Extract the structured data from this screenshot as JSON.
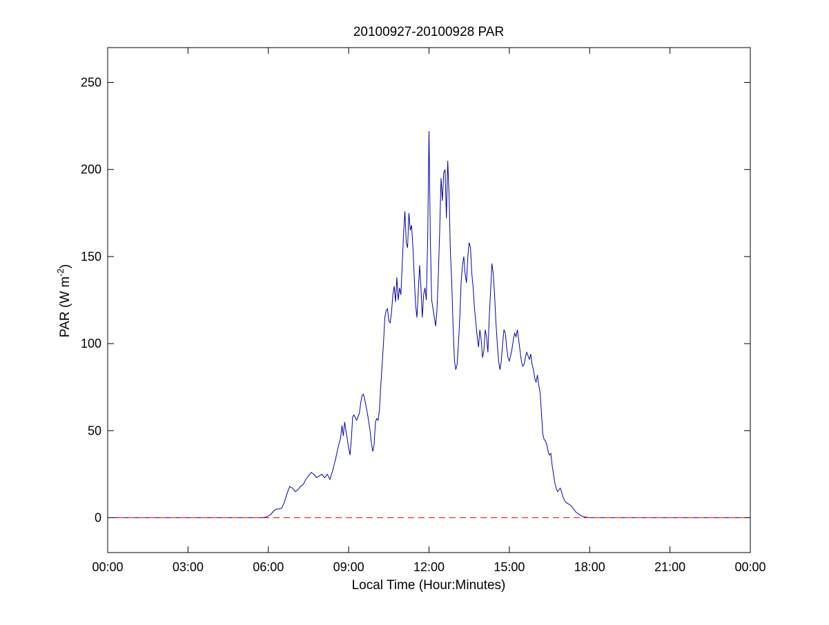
{
  "chart_data": {
    "type": "line",
    "title": "20100927-20100928 PAR",
    "xlabel": "Local Time (Hour:Minutes)",
    "ylabel_main": "PAR (W m",
    "ylabel_sup": "-2",
    "ylabel_close": ")",
    "x_unit": "hours",
    "xlim": [
      0,
      24
    ],
    "ylim": [
      -20,
      270
    ],
    "x_ticks": [
      0,
      3,
      6,
      9,
      12,
      15,
      18,
      21,
      24
    ],
    "x_tick_labels": [
      "00:00",
      "03:00",
      "06:00",
      "09:00",
      "12:00",
      "15:00",
      "18:00",
      "21:00",
      "00:00"
    ],
    "y_ticks": [
      0,
      50,
      100,
      150,
      200,
      250
    ],
    "y_tick_labels": [
      "0",
      "50",
      "100",
      "150",
      "200",
      "250"
    ],
    "grid": false,
    "series": [
      {
        "color": "#0000aa",
        "style": "solid",
        "points": [
          [
            0.0,
            0
          ],
          [
            5.75,
            0
          ],
          [
            5.9,
            0.3
          ],
          [
            6.0,
            1
          ],
          [
            6.1,
            2
          ],
          [
            6.2,
            4
          ],
          [
            6.3,
            5
          ],
          [
            6.4,
            5
          ],
          [
            6.5,
            5.5
          ],
          [
            6.6,
            9
          ],
          [
            6.7,
            14
          ],
          [
            6.8,
            18
          ],
          [
            6.9,
            17
          ],
          [
            7.0,
            15
          ],
          [
            7.1,
            16
          ],
          [
            7.2,
            18
          ],
          [
            7.3,
            19
          ],
          [
            7.4,
            22
          ],
          [
            7.5,
            24
          ],
          [
            7.6,
            26
          ],
          [
            7.7,
            25
          ],
          [
            7.8,
            23
          ],
          [
            7.9,
            24
          ],
          [
            8.0,
            25
          ],
          [
            8.1,
            23
          ],
          [
            8.2,
            25
          ],
          [
            8.3,
            22
          ],
          [
            8.4,
            27
          ],
          [
            8.5,
            33
          ],
          [
            8.6,
            40
          ],
          [
            8.7,
            46
          ],
          [
            8.75,
            53
          ],
          [
            8.8,
            47
          ],
          [
            8.85,
            55
          ],
          [
            8.9,
            50
          ],
          [
            9.0,
            40
          ],
          [
            9.05,
            36
          ],
          [
            9.1,
            45
          ],
          [
            9.15,
            58
          ],
          [
            9.2,
            59
          ],
          [
            9.3,
            56
          ],
          [
            9.4,
            60
          ],
          [
            9.45,
            66
          ],
          [
            9.5,
            70
          ],
          [
            9.55,
            71
          ],
          [
            9.6,
            68
          ],
          [
            9.7,
            60
          ],
          [
            9.8,
            50
          ],
          [
            9.85,
            43
          ],
          [
            9.9,
            38
          ],
          [
            9.95,
            42
          ],
          [
            10.0,
            55
          ],
          [
            10.05,
            57
          ],
          [
            10.1,
            56
          ],
          [
            10.15,
            62
          ],
          [
            10.2,
            76
          ],
          [
            10.25,
            88
          ],
          [
            10.3,
            100
          ],
          [
            10.35,
            115
          ],
          [
            10.4,
            119
          ],
          [
            10.45,
            120
          ],
          [
            10.5,
            113
          ],
          [
            10.55,
            112
          ],
          [
            10.6,
            118
          ],
          [
            10.65,
            128
          ],
          [
            10.7,
            133
          ],
          [
            10.75,
            124
          ],
          [
            10.8,
            138
          ],
          [
            10.85,
            125
          ],
          [
            10.9,
            132
          ],
          [
            10.95,
            128
          ],
          [
            11.0,
            145
          ],
          [
            11.05,
            163
          ],
          [
            11.1,
            176
          ],
          [
            11.15,
            158
          ],
          [
            11.2,
            155
          ],
          [
            11.25,
            175
          ],
          [
            11.3,
            165
          ],
          [
            11.35,
            168
          ],
          [
            11.4,
            155
          ],
          [
            11.45,
            138
          ],
          [
            11.5,
            122
          ],
          [
            11.55,
            115
          ],
          [
            11.6,
            130
          ],
          [
            11.65,
            145
          ],
          [
            11.7,
            132
          ],
          [
            11.75,
            115
          ],
          [
            11.8,
            128
          ],
          [
            11.85,
            132
          ],
          [
            11.9,
            125
          ],
          [
            11.95,
            160
          ],
          [
            12.0,
            222
          ],
          [
            12.05,
            160
          ],
          [
            12.1,
            125
          ],
          [
            12.15,
            120
          ],
          [
            12.2,
            115
          ],
          [
            12.25,
            110
          ],
          [
            12.3,
            120
          ],
          [
            12.35,
            140
          ],
          [
            12.4,
            165
          ],
          [
            12.45,
            195
          ],
          [
            12.5,
            182
          ],
          [
            12.55,
            198
          ],
          [
            12.6,
            200
          ],
          [
            12.65,
            172
          ],
          [
            12.7,
            205
          ],
          [
            12.75,
            185
          ],
          [
            12.8,
            152
          ],
          [
            12.85,
            135
          ],
          [
            12.9,
            110
          ],
          [
            12.95,
            90
          ],
          [
            13.0,
            85
          ],
          [
            13.05,
            88
          ],
          [
            13.1,
            100
          ],
          [
            13.15,
            115
          ],
          [
            13.2,
            135
          ],
          [
            13.25,
            145
          ],
          [
            13.3,
            150
          ],
          [
            13.35,
            140
          ],
          [
            13.4,
            135
          ],
          [
            13.45,
            150
          ],
          [
            13.5,
            158
          ],
          [
            13.55,
            155
          ],
          [
            13.6,
            140
          ],
          [
            13.65,
            132
          ],
          [
            13.7,
            120
          ],
          [
            13.75,
            112
          ],
          [
            13.8,
            104
          ],
          [
            13.85,
            98
          ],
          [
            13.9,
            108
          ],
          [
            13.95,
            102
          ],
          [
            14.0,
            92
          ],
          [
            14.05,
            96
          ],
          [
            14.1,
            108
          ],
          [
            14.15,
            104
          ],
          [
            14.2,
            95
          ],
          [
            14.25,
            115
          ],
          [
            14.3,
            130
          ],
          [
            14.35,
            146
          ],
          [
            14.4,
            140
          ],
          [
            14.45,
            128
          ],
          [
            14.5,
            112
          ],
          [
            14.55,
            100
          ],
          [
            14.6,
            90
          ],
          [
            14.65,
            85
          ],
          [
            14.7,
            90
          ],
          [
            14.75,
            100
          ],
          [
            14.8,
            108
          ],
          [
            14.85,
            106
          ],
          [
            14.9,
            98
          ],
          [
            14.95,
            92
          ],
          [
            15.0,
            90
          ],
          [
            15.05,
            93
          ],
          [
            15.1,
            97
          ],
          [
            15.15,
            102
          ],
          [
            15.2,
            106
          ],
          [
            15.25,
            104
          ],
          [
            15.3,
            108
          ],
          [
            15.35,
            102
          ],
          [
            15.4,
            96
          ],
          [
            15.45,
            90
          ],
          [
            15.5,
            87
          ],
          [
            15.55,
            88
          ],
          [
            15.6,
            92
          ],
          [
            15.65,
            95
          ],
          [
            15.7,
            93
          ],
          [
            15.75,
            91
          ],
          [
            15.8,
            94
          ],
          [
            15.85,
            88
          ],
          [
            15.9,
            85
          ],
          [
            15.95,
            80
          ],
          [
            16.0,
            78
          ],
          [
            16.05,
            82
          ],
          [
            16.1,
            76
          ],
          [
            16.15,
            72
          ],
          [
            16.2,
            60
          ],
          [
            16.25,
            48
          ],
          [
            16.3,
            45
          ],
          [
            16.35,
            44
          ],
          [
            16.4,
            42
          ],
          [
            16.45,
            38
          ],
          [
            16.5,
            36
          ],
          [
            16.55,
            37
          ],
          [
            16.6,
            30
          ],
          [
            16.65,
            25
          ],
          [
            16.7,
            20
          ],
          [
            16.75,
            17
          ],
          [
            16.8,
            15
          ],
          [
            16.85,
            16
          ],
          [
            16.9,
            17
          ],
          [
            16.95,
            15
          ],
          [
            17.0,
            12
          ],
          [
            17.1,
            9
          ],
          [
            17.2,
            8
          ],
          [
            17.3,
            7
          ],
          [
            17.4,
            5
          ],
          [
            17.5,
            3
          ],
          [
            17.6,
            2
          ],
          [
            17.7,
            1
          ],
          [
            17.8,
            0.5
          ],
          [
            17.9,
            0.2
          ],
          [
            18.0,
            0
          ],
          [
            24.0,
            0
          ]
        ]
      },
      {
        "color": "#ff0000",
        "style": "dashed",
        "points": [
          [
            0,
            0
          ],
          [
            24,
            0
          ]
        ]
      }
    ]
  }
}
